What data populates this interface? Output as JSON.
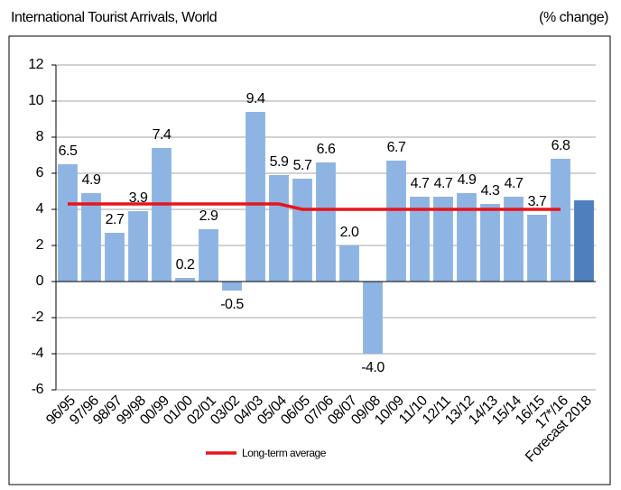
{
  "chart_data": {
    "type": "bar",
    "title": "International Tourist Arrivals, World",
    "subtitle": "(% change)",
    "categories": [
      "96/95",
      "97/96",
      "98/97",
      "99/98",
      "00/99",
      "01/00",
      "02/01",
      "03/02",
      "04/03",
      "05/04",
      "06/05",
      "07/06",
      "08/07",
      "09/08",
      "10/09",
      "11/10",
      "12/11",
      "13/12",
      "14/13",
      "15/14",
      "16/15",
      "17*/16",
      "Forecast 2018"
    ],
    "values": [
      6.5,
      4.9,
      2.7,
      3.9,
      7.4,
      0.2,
      2.9,
      -0.5,
      9.4,
      5.9,
      5.7,
      6.6,
      2.0,
      -4.0,
      6.7,
      4.7,
      4.7,
      4.9,
      4.3,
      4.7,
      3.7,
      6.8,
      4.5
    ],
    "value_labels": [
      "6.5",
      "4.9",
      "2.7",
      "3.9",
      "7.4",
      "0.2",
      "2.9",
      "-0.5",
      "9.4",
      "5.9",
      "5.7",
      "6.6",
      "2.0",
      "-4.0",
      "6.7",
      "4.7",
      "4.7",
      "4.9",
      "4.3",
      "4.7",
      "3.7",
      "6.8",
      null
    ],
    "colors": [
      "#8eb4e3",
      "#8eb4e3",
      "#8eb4e3",
      "#8eb4e3",
      "#8eb4e3",
      "#8eb4e3",
      "#8eb4e3",
      "#8eb4e3",
      "#8eb4e3",
      "#8eb4e3",
      "#8eb4e3",
      "#8eb4e3",
      "#8eb4e3",
      "#8eb4e3",
      "#8eb4e3",
      "#8eb4e3",
      "#8eb4e3",
      "#8eb4e3",
      "#8eb4e3",
      "#8eb4e3",
      "#8eb4e3",
      "#8eb4e3",
      "#4f7fbd"
    ],
    "line_series": {
      "name": "Long-term average",
      "color": "#e8141b",
      "values": [
        4.3,
        4.3,
        4.3,
        4.3,
        4.3,
        4.3,
        4.3,
        4.3,
        4.3,
        4.3,
        4.0,
        4.0,
        4.0,
        4.0,
        4.0,
        4.0,
        4.0,
        4.0,
        4.0,
        4.0,
        4.0,
        4.0,
        null
      ]
    },
    "ylim": [
      -6,
      12
    ],
    "yticks": [
      -6,
      -4,
      -2,
      0,
      2,
      4,
      6,
      8,
      10,
      12
    ],
    "grid": true,
    "legend": "bottom"
  }
}
